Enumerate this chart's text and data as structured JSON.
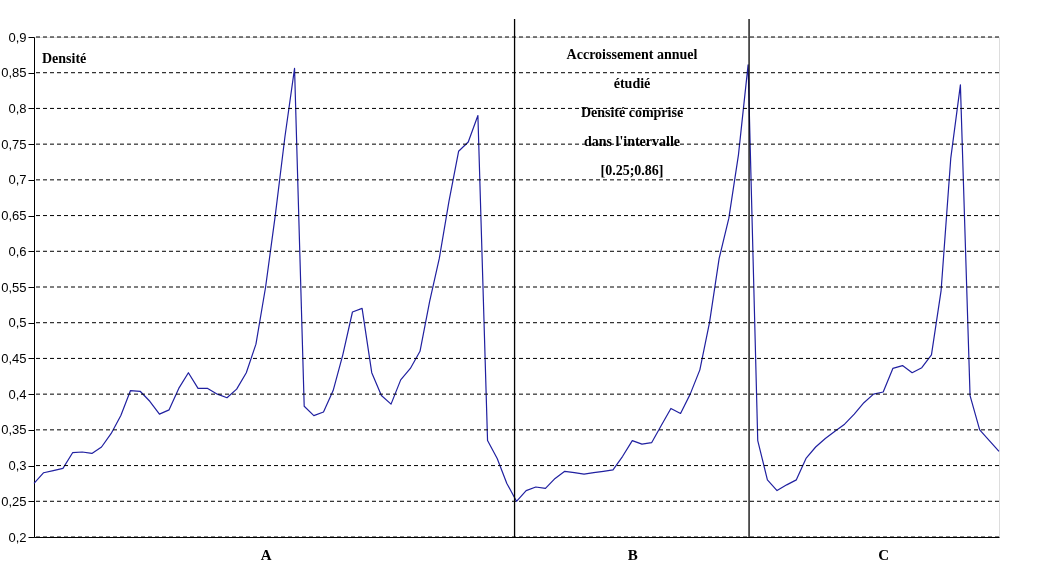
{
  "chart_data": {
    "type": "line",
    "categories": [
      null,
      null,
      null,
      null,
      null,
      null,
      null,
      null,
      null,
      null,
      null,
      null,
      null,
      null,
      null,
      null,
      null,
      null,
      null,
      null,
      null,
      null,
      null,
      null,
      "A",
      null,
      null,
      null,
      null,
      null,
      null,
      null,
      null,
      null,
      null,
      null,
      null,
      null,
      null,
      null,
      null,
      null,
      null,
      null,
      null,
      null,
      null,
      null,
      null,
      null,
      null,
      null,
      null,
      null,
      null,
      null,
      null,
      null,
      null,
      null,
      null,
      null,
      "B",
      null,
      null,
      null,
      null,
      null,
      null,
      null,
      null,
      null,
      null,
      null,
      null,
      null,
      null,
      null,
      null,
      null,
      null,
      null,
      null,
      null,
      null,
      null,
      null,
      null,
      "C",
      null,
      null,
      null,
      null,
      null,
      null,
      null,
      null,
      null,
      null,
      null,
      null
    ],
    "series": [
      {
        "color": "#2020a0",
        "values": [
          0.275,
          0.29,
          0.293,
          0.296,
          0.318,
          0.319,
          0.317,
          0.326,
          0.345,
          0.37,
          0.405,
          0.404,
          0.39,
          0.372,
          0.378,
          0.408,
          0.43,
          0.408,
          0.408,
          0.4,
          0.395,
          0.407,
          0.43,
          0.47,
          0.55,
          0.65,
          0.76,
          0.856,
          0.383,
          0.37,
          0.375,
          0.405,
          0.455,
          0.515,
          0.52,
          0.43,
          0.398,
          0.386,
          0.42,
          0.436,
          0.46,
          0.53,
          0.59,
          0.67,
          0.74,
          0.753,
          0.79,
          0.335,
          0.31,
          0.275,
          0.25,
          0.265,
          0.27,
          0.268,
          0.282,
          0.292,
          0.29,
          0.288,
          0.29,
          0.292,
          0.294,
          0.313,
          0.335,
          0.33,
          0.332,
          0.356,
          0.38,
          0.373,
          0.4,
          0.434,
          0.5,
          0.59,
          0.646,
          0.735,
          0.861,
          0.335,
          0.28,
          0.265,
          0.273,
          0.28,
          0.31,
          0.326,
          0.338,
          0.348,
          0.358,
          0.372,
          0.388,
          0.4,
          0.403,
          0.436,
          0.44,
          0.43,
          0.437,
          0.455,
          0.545,
          0.73,
          0.833,
          0.398,
          0.35,
          0.335,
          0.32
        ]
      }
    ],
    "ylim": [
      0.2,
      0.9
    ],
    "yticks": [
      {
        "value": 0.2,
        "label": "0,2"
      },
      {
        "value": 0.25,
        "label": "0,25"
      },
      {
        "value": 0.3,
        "label": "0,3"
      },
      {
        "value": 0.35,
        "label": "0,35"
      },
      {
        "value": 0.4,
        "label": "0,4"
      },
      {
        "value": 0.45,
        "label": "0,45"
      },
      {
        "value": 0.5,
        "label": "0,5"
      },
      {
        "value": 0.55,
        "label": "0,55"
      },
      {
        "value": 0.6,
        "label": "0,6"
      },
      {
        "value": 0.65,
        "label": "0,65"
      },
      {
        "value": 0.7,
        "label": "0,7"
      },
      {
        "value": 0.75,
        "label": "0,75"
      },
      {
        "value": 0.8,
        "label": "0,8"
      },
      {
        "value": 0.85,
        "label": "0,85"
      },
      {
        "value": 0.9,
        "label": "0,9"
      }
    ],
    "grid": "y",
    "line_style": "solid",
    "marker": "none",
    "annotations": [
      "Densité",
      "Accroissement annuel\nétudié\nDensité comprise\ndans l'intervalle\n[0.25;0.86]"
    ]
  }
}
